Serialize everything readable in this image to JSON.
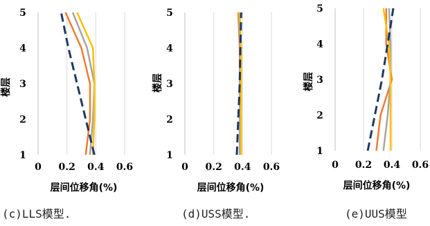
{
  "chart_data": [
    {
      "type": "line",
      "caption": "(c)LLS模型.",
      "xlabel": "层间位移角(%)",
      "ylabel": "楼层",
      "xlim": [
        0,
        0.6
      ],
      "ylim": [
        1,
        5
      ],
      "xticks": [
        "0",
        "0.2",
        "0.4",
        "0.6"
      ],
      "yticks": [
        "1",
        "2",
        "3",
        "4",
        "5"
      ],
      "grid": "vertical",
      "series": [
        {
          "color": "#ED7D31",
          "dash": "solid",
          "points": [
            [
              0.33,
              1
            ],
            [
              0.36,
              2
            ],
            [
              0.36,
              3
            ],
            [
              0.3,
              4
            ],
            [
              0.19,
              5
            ]
          ]
        },
        {
          "color": "#A5A5A5",
          "dash": "solid",
          "points": [
            [
              0.36,
              1
            ],
            [
              0.38,
              2
            ],
            [
              0.39,
              3
            ],
            [
              0.34,
              4
            ],
            [
              0.24,
              5
            ]
          ]
        },
        {
          "color": "#FFC000",
          "dash": "solid",
          "points": [
            [
              0.38,
              1
            ],
            [
              0.39,
              2
            ],
            [
              0.39,
              3
            ],
            [
              0.38,
              4
            ],
            [
              0.27,
              5
            ]
          ]
        },
        {
          "color": "#1F3864",
          "dash": "dashed",
          "points": [
            [
              0.39,
              1
            ],
            [
              0.33,
              2
            ],
            [
              0.27,
              3
            ],
            [
              0.21,
              4
            ],
            [
              0.16,
              5
            ]
          ]
        }
      ]
    },
    {
      "type": "line",
      "caption": "(d)USS模型.",
      "xlabel": "层间位移角(%)",
      "ylabel": "楼层",
      "xlim": [
        0,
        0.6
      ],
      "ylim": [
        1,
        5
      ],
      "xticks": [
        "0",
        "0.2",
        "0.4",
        "0.6"
      ],
      "yticks": [
        "1",
        "2",
        "3",
        "4",
        "5"
      ],
      "grid": "vertical",
      "series": [
        {
          "color": "#ED7D31",
          "dash": "solid",
          "points": [
            [
              0.38,
              1
            ],
            [
              0.38,
              2
            ],
            [
              0.38,
              3
            ],
            [
              0.38,
              4
            ],
            [
              0.37,
              5
            ]
          ]
        },
        {
          "color": "#A5A5A5",
          "dash": "solid",
          "points": [
            [
              0.38,
              1
            ],
            [
              0.38,
              2
            ],
            [
              0.38,
              3
            ],
            [
              0.385,
              4
            ],
            [
              0.375,
              5
            ]
          ]
        },
        {
          "color": "#FFC000",
          "dash": "solid",
          "points": [
            [
              0.39,
              1
            ],
            [
              0.39,
              2
            ],
            [
              0.39,
              3
            ],
            [
              0.39,
              4
            ],
            [
              0.38,
              5
            ]
          ]
        },
        {
          "color": "#1F3864",
          "dash": "dashed",
          "points": [
            [
              0.36,
              1
            ],
            [
              0.37,
              2
            ],
            [
              0.38,
              3
            ],
            [
              0.385,
              4
            ],
            [
              0.39,
              5
            ]
          ]
        }
      ]
    },
    {
      "type": "line",
      "caption": "(e)UUS模型",
      "xlabel": "层间位移角(%)",
      "ylabel": "楼层",
      "xlim": [
        0,
        0.6
      ],
      "ylim": [
        1,
        5
      ],
      "xticks": [
        "0",
        "0.2",
        "0.4",
        "0.6"
      ],
      "yticks": [
        "1",
        "2",
        "3",
        "4",
        "5"
      ],
      "grid": "vertical",
      "series": [
        {
          "color": "#ED7D31",
          "dash": "solid",
          "points": [
            [
              0.29,
              1
            ],
            [
              0.32,
              2
            ],
            [
              0.4,
              3
            ],
            [
              0.36,
              4
            ],
            [
              0.36,
              5
            ]
          ]
        },
        {
          "color": "#A5A5A5",
          "dash": "solid",
          "points": [
            [
              0.34,
              1
            ],
            [
              0.37,
              2
            ],
            [
              0.39,
              3
            ],
            [
              0.39,
              4
            ],
            [
              0.38,
              5
            ]
          ]
        },
        {
          "color": "#FFC000",
          "dash": "solid",
          "points": [
            [
              0.39,
              1
            ],
            [
              0.39,
              2
            ],
            [
              0.39,
              3
            ],
            [
              0.38,
              4
            ],
            [
              0.34,
              5
            ]
          ]
        },
        {
          "color": "#1F3864",
          "dash": "dashed",
          "points": [
            [
              0.23,
              1
            ],
            [
              0.28,
              2
            ],
            [
              0.33,
              3
            ],
            [
              0.37,
              4
            ],
            [
              0.41,
              5
            ]
          ]
        }
      ]
    }
  ]
}
